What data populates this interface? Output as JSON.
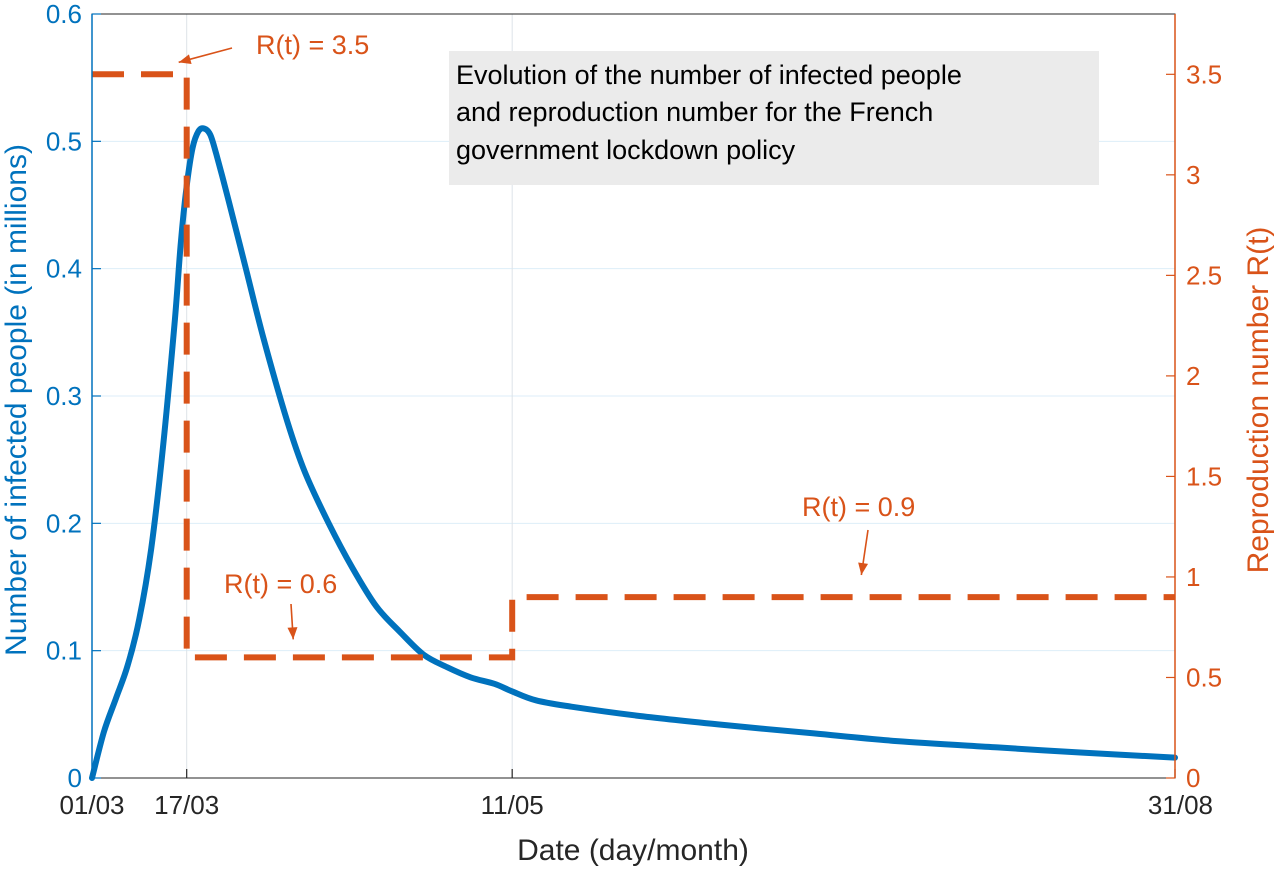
{
  "chart_data": {
    "type": "line",
    "title_lines": [
      "Evolution of the number of infected people",
      "and reproduction number for the French",
      "government lockdown policy"
    ],
    "xlabel": "Date (day/month)",
    "ylabel_left": "Number of infected people (in millions)",
    "ylabel_right": "Reproduction number R(t)",
    "x_ticks": [
      "01/03",
      "17/03",
      "11/05",
      "31/08"
    ],
    "x_tick_days": [
      0,
      16,
      71,
      183
    ],
    "xlim_days": [
      0,
      183
    ],
    "ylim_left": [
      0,
      0.6
    ],
    "y_ticks_left": [
      "0",
      "0.1",
      "0.2",
      "0.3",
      "0.4",
      "0.5",
      "0.6"
    ],
    "ylim_right": [
      0,
      3.8
    ],
    "y_ticks_right": [
      "0",
      "0.5",
      "1",
      "1.5",
      "2",
      "2.5",
      "3",
      "3.5"
    ],
    "grid": true,
    "colors": {
      "infected": "#0072BD",
      "reproduction": "#D95319",
      "title_box": "#EBEBEB"
    },
    "series": [
      {
        "axis": "left",
        "style": "solid",
        "x_date": [
          "01/03",
          "03/03",
          "05/03",
          "07/03",
          "09/03",
          "11/03",
          "13/03",
          "15/03",
          "16/03",
          "17/03",
          "18/03",
          "19/03",
          "20/03",
          "21/03",
          "22/03",
          "24/03",
          "27/03",
          "30/03",
          "03/04",
          "06/04",
          "10/04",
          "14/04",
          "18/04",
          "22/04",
          "26/04",
          "30/04",
          "04/05",
          "08/05",
          "11/05",
          "15/05",
          "21/05",
          "01/06",
          "15/06",
          "01/07",
          "15/07",
          "01/08",
          "15/08",
          "31/08"
        ],
        "x_day": [
          0,
          2,
          4,
          6,
          8,
          10,
          12,
          14,
          15,
          16,
          17,
          18,
          19,
          20,
          21,
          23,
          26,
          29,
          33,
          36,
          40,
          44,
          48,
          52,
          56,
          60,
          64,
          68,
          71,
          75,
          81,
          92,
          106,
          122,
          136,
          153,
          167,
          183
        ],
        "values": [
          0,
          0.036,
          0.062,
          0.088,
          0.125,
          0.18,
          0.26,
          0.36,
          0.42,
          0.465,
          0.495,
          0.508,
          0.51,
          0.505,
          0.49,
          0.455,
          0.4,
          0.345,
          0.28,
          0.24,
          0.2,
          0.165,
          0.135,
          0.115,
          0.097,
          0.087,
          0.079,
          0.074,
          0.068,
          0.061,
          0.056,
          0.049,
          0.042,
          0.035,
          0.029,
          0.024,
          0.02,
          0.016
        ]
      },
      {
        "axis": "right",
        "style": "dashed",
        "x_date": [
          "01/03",
          "17/03",
          "17/03",
          "11/05",
          "11/05",
          "31/08"
        ],
        "x_day": [
          0,
          16,
          16,
          71,
          71,
          183
        ],
        "values": [
          3.5,
          3.5,
          0.6,
          0.6,
          0.9,
          0.9
        ]
      }
    ],
    "annotations": [
      {
        "text": "R(t) = 3.5",
        "arrow_to_day": 16,
        "arrow_to_value": 3.5
      },
      {
        "text": "R(t) = 0.6",
        "arrow_to_day": 34,
        "arrow_to_value": 0.6
      },
      {
        "text": "R(t) = 0.9",
        "arrow_to_day": 130,
        "arrow_to_value": 0.9
      }
    ]
  }
}
